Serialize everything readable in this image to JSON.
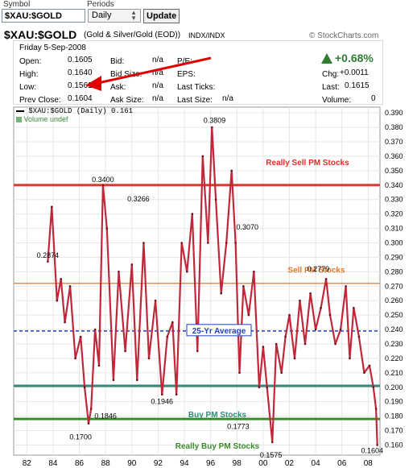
{
  "controls": {
    "symbol_label": "Symbol",
    "symbol_value": "$XAU:$GOLD",
    "periods_label": "Periods",
    "period_value": "Daily",
    "update_label": "Update"
  },
  "header": {
    "symbol": "$XAU:$GOLD",
    "name": "(Gold & Silver/Gold (EOD))",
    "exchange": "INDX/INDX",
    "brand": "© StockCharts.com"
  },
  "quote": {
    "date": "Friday  5-Sep-2008",
    "open_label": "Open:",
    "open": "0.1605",
    "high_label": "High:",
    "high": "0.1640",
    "low_label": "Low:",
    "low": "0.1561",
    "prev_label": "Prev Close:",
    "prev": "0.1604",
    "bid_label": "Bid:",
    "bid": "n/a",
    "bidsize_label": "Bid Size:",
    "bidsize": "n/a",
    "ask_label": "Ask:",
    "ask": "n/a",
    "asksize_label": "Ask Size:",
    "asksize": "n/a",
    "pe_label": "P/E:",
    "eps_label": "EPS:",
    "lastticks_label": "Last Ticks:",
    "lastsize_label": "Last Size:",
    "lastsize": "n/a",
    "pct_change": "+0.68%",
    "chg_label": "Chg:",
    "chg": "+0.0011",
    "last_label": "Last:",
    "last": "0.1615",
    "volume_label": "Volume:",
    "volume": "0"
  },
  "legend": {
    "series": "$XAU:$GOLD (Daily) 0.161",
    "volume": "Volume undef"
  },
  "colors": {
    "price": "#c0283a",
    "really_sell": "#e03a2f",
    "sell": "#f08a3a",
    "average": "#1f3fbf",
    "buy": "#2e8b7a",
    "really_buy": "#3c8a2c",
    "up_arrow": "#2e7d32",
    "annotation_arrow": "#e00000"
  },
  "chart_data": {
    "type": "line",
    "title": "$XAU:$GOLD (Daily) 0.161",
    "ylim": [
      0.153,
      0.394
    ],
    "yticks": [
      0.16,
      0.17,
      0.18,
      0.19,
      0.2,
      0.21,
      0.22,
      0.23,
      0.24,
      0.25,
      0.26,
      0.27,
      0.28,
      0.29,
      0.3,
      0.31,
      0.32,
      0.33,
      0.34,
      0.35,
      0.36,
      0.37,
      0.38,
      0.39
    ],
    "ytick_labels": [
      "0.160",
      "0.170",
      "0.180",
      "0.190",
      "0.200",
      "0.210",
      "0.220",
      "0.230",
      "0.240",
      "0.250",
      "0.260",
      "0.270",
      "0.280",
      "0.290",
      "0.300",
      "0.310",
      "0.320",
      "0.330",
      "0.340",
      "0.350",
      "0.360",
      "0.370",
      "0.380",
      "0.390"
    ],
    "xlim": [
      1981.0,
      2008.9
    ],
    "xticks": [
      1982,
      1984,
      1986,
      1988,
      1990,
      1992,
      1994,
      1996,
      1998,
      2000,
      2002,
      2004,
      2006,
      2008
    ],
    "xtick_labels": [
      "82",
      "84",
      "86",
      "88",
      "90",
      "92",
      "94",
      "96",
      "98",
      "00",
      "02",
      "04",
      "06",
      "08"
    ],
    "grid": true,
    "series": [
      {
        "name": "$XAU:$GOLD",
        "x": [
          1983.6,
          1983.9,
          1984.3,
          1984.6,
          1984.9,
          1985.3,
          1985.7,
          1986.1,
          1986.4,
          1986.7,
          1986.9,
          1987.2,
          1987.5,
          1987.8,
          1988.1,
          1988.6,
          1989.0,
          1989.5,
          1990.0,
          1990.4,
          1990.9,
          1991.3,
          1991.8,
          1992.3,
          1992.7,
          1993.1,
          1993.4,
          1993.8,
          1994.2,
          1994.6,
          1995.0,
          1995.4,
          1995.8,
          1996.1,
          1996.4,
          1996.8,
          1997.2,
          1997.6,
          1997.9,
          1998.2,
          1998.5,
          1998.9,
          1999.3,
          1999.7,
          2000.0,
          2000.3,
          2000.7,
          2001.0,
          2001.4,
          2001.7,
          2002.0,
          2002.4,
          2002.8,
          2003.2,
          2003.6,
          2004.0,
          2004.4,
          2004.8,
          2005.1,
          2005.5,
          2005.9,
          2006.3,
          2006.6,
          2006.9,
          2007.3,
          2007.7,
          2008.1,
          2008.4,
          2008.6,
          2008.7
        ],
        "values": [
          0.287,
          0.325,
          0.26,
          0.275,
          0.245,
          0.27,
          0.22,
          0.235,
          0.2,
          0.175,
          0.185,
          0.24,
          0.215,
          0.34,
          0.31,
          0.205,
          0.28,
          0.225,
          0.285,
          0.205,
          0.3,
          0.22,
          0.26,
          0.195,
          0.235,
          0.245,
          0.195,
          0.3,
          0.28,
          0.32,
          0.225,
          0.36,
          0.3,
          0.38,
          0.33,
          0.265,
          0.3,
          0.35,
          0.3,
          0.21,
          0.27,
          0.25,
          0.28,
          0.2,
          0.228,
          0.2,
          0.162,
          0.23,
          0.21,
          0.235,
          0.25,
          0.22,
          0.26,
          0.23,
          0.265,
          0.24,
          0.255,
          0.275,
          0.25,
          0.23,
          0.24,
          0.27,
          0.22,
          0.255,
          0.235,
          0.21,
          0.215,
          0.2,
          0.185,
          0.16
        ]
      }
    ],
    "levels": [
      {
        "name": "Really Sell PM Stocks",
        "value": 0.34
      },
      {
        "name": "Sell PM Stocks",
        "value": 0.272
      },
      {
        "name": "25-Yr Average",
        "value": 0.239
      },
      {
        "name": "Buy PM Stocks",
        "value": 0.201
      },
      {
        "name": "Really Buy PM Stocks",
        "value": 0.178
      }
    ],
    "annotations": [
      {
        "text": "0.3809",
        "x": 1996.3,
        "y": 0.3809
      },
      {
        "text": "0.3400",
        "x": 1987.8,
        "y": 0.34
      },
      {
        "text": "0.3266",
        "x": 1990.5,
        "y": 0.3266
      },
      {
        "text": "0.3070",
        "x": 1998.8,
        "y": 0.307
      },
      {
        "text": "0.2874",
        "x": 1983.6,
        "y": 0.2874
      },
      {
        "text": "0.2779",
        "x": 2004.2,
        "y": 0.2779
      },
      {
        "text": "0.1946",
        "x": 1992.3,
        "y": 0.1946
      },
      {
        "text": "0.1846",
        "x": 1988.0,
        "y": 0.1846
      },
      {
        "text": "0.1773",
        "x": 1998.1,
        "y": 0.1773
      },
      {
        "text": "0.1700",
        "x": 1986.1,
        "y": 0.17
      },
      {
        "text": "0.1575",
        "x": 2000.6,
        "y": 0.1575
      },
      {
        "text": "0.1604",
        "x": 2008.3,
        "y": 0.1604
      }
    ]
  }
}
